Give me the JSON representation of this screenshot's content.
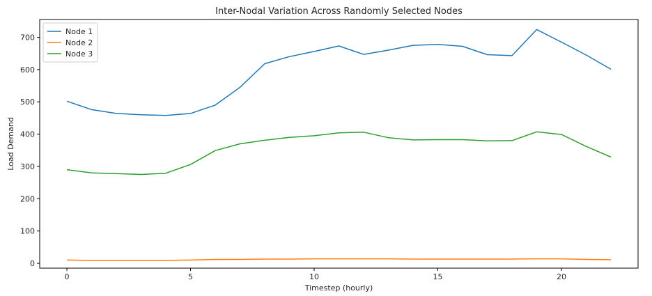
{
  "chart_data": {
    "type": "line",
    "title": "Inter-Nodal Variation Across Randomly Selected Nodes",
    "xlabel": "Timestep (hourly)",
    "ylabel": "Load Demand",
    "xlim": [
      -1.1,
      23.1
    ],
    "ylim": [
      -15,
      755
    ],
    "xticks": [
      0,
      5,
      10,
      15,
      20
    ],
    "yticks": [
      0,
      100,
      200,
      300,
      400,
      500,
      600,
      700
    ],
    "grid": false,
    "legend_position": "top-left",
    "x": [
      0,
      1,
      2,
      3,
      4,
      5,
      6,
      7,
      8,
      9,
      10,
      11,
      12,
      13,
      14,
      15,
      16,
      17,
      18,
      19,
      20,
      21,
      22
    ],
    "series": [
      {
        "name": "Node 1",
        "color": "#1f77b4",
        "values": [
          502,
          476,
          464,
          460,
          458,
          464,
          490,
          545,
          618,
          640,
          656,
          673,
          647,
          660,
          675,
          678,
          672,
          646,
          643,
          724,
          685,
          645,
          601
        ]
      },
      {
        "name": "Node 2",
        "color": "#ff7f0e",
        "values": [
          10,
          9,
          9,
          9,
          9,
          10,
          12,
          12,
          13,
          13,
          14,
          14,
          14,
          14,
          13,
          13,
          13,
          13,
          13,
          14,
          14,
          12,
          11
        ]
      },
      {
        "name": "Node 3",
        "color": "#2ca02c",
        "values": [
          290,
          280,
          278,
          275,
          279,
          306,
          349,
          370,
          381,
          390,
          395,
          404,
          406,
          389,
          382,
          383,
          383,
          379,
          380,
          407,
          399,
          362,
          329
        ]
      }
    ]
  }
}
